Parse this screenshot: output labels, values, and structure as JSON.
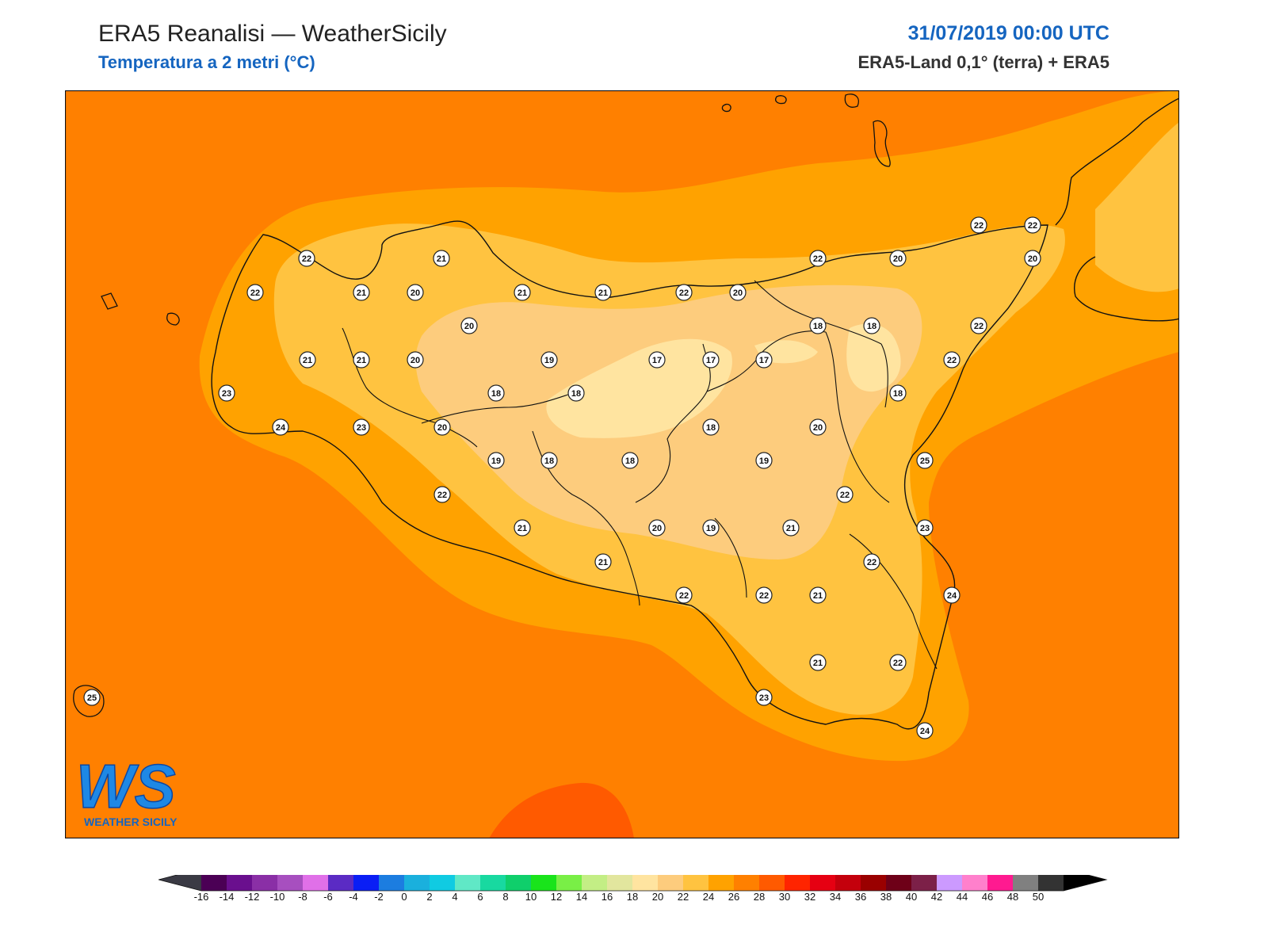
{
  "header": {
    "title": "ERA5 Reanalisi — WeatherSicily",
    "subtitle": "Temperatura a 2 metri (°C)",
    "datetime": "31/07/2019 00:00 UTC",
    "source": "ERA5-Land 0,1° (terra) + ERA5"
  },
  "logo": {
    "letters": "WS",
    "text": "WEATHER SICILY"
  },
  "map": {
    "variable": "2m temperature",
    "units": "°C",
    "station_labels": [
      "22",
      "21",
      "22",
      "21",
      "20",
      "21",
      "21",
      "22",
      "20",
      "22",
      "20",
      "22",
      "22",
      "20",
      "20",
      "18",
      "18",
      "22",
      "21",
      "21",
      "20",
      "19",
      "17",
      "17",
      "17",
      "22",
      "23",
      "18",
      "18",
      "18",
      "24",
      "23",
      "20",
      "18",
      "20",
      "19",
      "18",
      "18",
      "19",
      "25",
      "22",
      "22",
      "21",
      "20",
      "19",
      "21",
      "23",
      "21",
      "22",
      "22",
      "22",
      "21",
      "24",
      "21",
      "22",
      "25",
      "23",
      "24"
    ]
  },
  "colorbar": {
    "ticks": [
      "-16",
      "-14",
      "-12",
      "-10",
      "-8",
      "-6",
      "-4",
      "-2",
      "0",
      "2",
      "4",
      "6",
      "8",
      "10",
      "12",
      "14",
      "16",
      "18",
      "20",
      "22",
      "24",
      "26",
      "28",
      "30",
      "32",
      "34",
      "36",
      "38",
      "40",
      "42",
      "44",
      "46",
      "48",
      "50"
    ],
    "colors": [
      "#4b0055",
      "#6a0f8e",
      "#8a2fa6",
      "#a74fbf",
      "#e070e8",
      "#5b2bc4",
      "#0a1ef5",
      "#1c7de0",
      "#1ab0dd",
      "#10cbe2",
      "#60e8c6",
      "#18d9a0",
      "#0fcf6b",
      "#19e41b",
      "#79ef46",
      "#c3ee85",
      "#e2e69e",
      "#ffe4a0",
      "#fdcc7d",
      "#ffc340",
      "#ffa200",
      "#ff8000",
      "#ff5a00",
      "#ff2400",
      "#e60012",
      "#c4000c",
      "#9a0000",
      "#6e0018",
      "#7c2048",
      "#cc9aff",
      "#ff80cc",
      "#ff1a90",
      "#808080",
      "#333333"
    ],
    "under_color": "#3a3a44",
    "over_color": "#000000"
  },
  "colors": {
    "sea_background": "#ff8000",
    "band_24": "#ffa200",
    "band_22": "#ffc340",
    "band_20": "#fdcc7d",
    "band_18": "#ffe4a0",
    "hot_spot": "#ff5a00",
    "title_blue": "#1565c0"
  }
}
